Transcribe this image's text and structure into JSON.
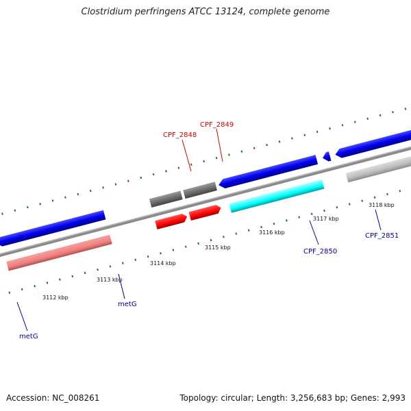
{
  "title": "Clostridium perfringens ATCC 13124, complete genome",
  "footer": {
    "accession": "Accession: NC_008261",
    "summary": "Topology: circular; Length: 3,256,683 bp; Genes: 2,993"
  },
  "ticks": [
    {
      "label": "3112 kbp"
    },
    {
      "label": "3113 kbp"
    },
    {
      "label": "3114 kbp"
    },
    {
      "label": "3115 kbp"
    },
    {
      "label": "3116 kbp"
    },
    {
      "label": "3117 kbp"
    },
    {
      "label": "3118 kbp"
    }
  ],
  "genes": [
    {
      "label": "metG",
      "color": "#00008b"
    },
    {
      "label": "metG",
      "color": "#00008b"
    },
    {
      "label": "CPF_2848",
      "color": "#cc0000"
    },
    {
      "label": "CPF_2849",
      "color": "#cc0000"
    },
    {
      "label": "CPF_2850",
      "color": "#00008b"
    },
    {
      "label": "CPF_2851",
      "color": "#00008b"
    }
  ],
  "colors": {
    "backbone": "#808080",
    "cds_forward": "#0000ee",
    "cds_forward_alt": "#777777",
    "cds_rna": "#ff0000",
    "cds_trna": "#f08080",
    "cds_cyan": "#00ffff",
    "cds_light": "#bbbbbb",
    "tick": "#1b7a1b",
    "label_blue": "#00008b",
    "label_red": "#cc0000"
  }
}
